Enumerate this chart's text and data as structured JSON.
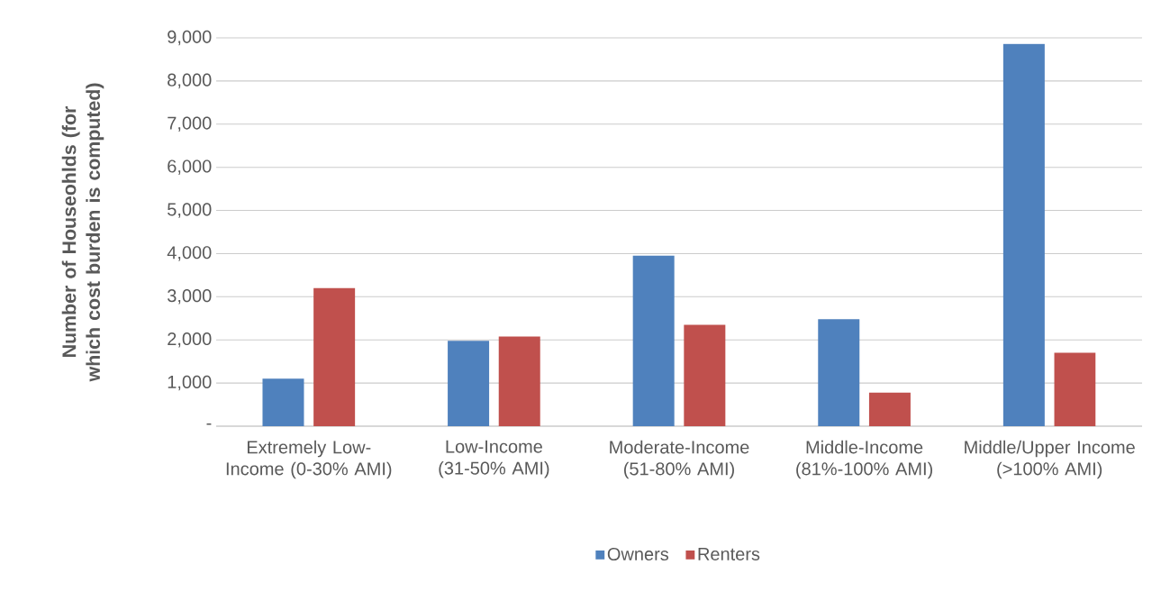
{
  "chart_data": {
    "type": "bar",
    "ylabel": "Number of Houseohlds (for which cost burden is computed)",
    "categories": [
      "Extremely Low-Income (0-30% AMI)",
      "Low-Income (31-50% AMI)",
      "Moderate-Income (51-80% AMI)",
      "Middle-Income (81%-100% AMI)",
      "Middle/Upper Income (>100% AMI)"
    ],
    "series": [
      {
        "name": "Owners",
        "color": "#4f81bd",
        "values": [
          1100,
          1980,
          3950,
          2480,
          8860
        ]
      },
      {
        "name": "Renters",
        "color": "#c0504d",
        "values": [
          3200,
          2080,
          2350,
          780,
          1700
        ]
      }
    ],
    "ylim": [
      0,
      9000
    ],
    "yticks": [
      {
        "value": 0,
        "label": "-"
      },
      {
        "value": 1000,
        "label": "1,000"
      },
      {
        "value": 2000,
        "label": "2,000"
      },
      {
        "value": 3000,
        "label": "3,000"
      },
      {
        "value": 4000,
        "label": "4,000"
      },
      {
        "value": 5000,
        "label": "5,000"
      },
      {
        "value": 6000,
        "label": "6,000"
      },
      {
        "value": 7000,
        "label": "7,000"
      },
      {
        "value": 8000,
        "label": "8,000"
      },
      {
        "value": 9000,
        "label": "9,000"
      }
    ],
    "grid": "y",
    "legend": "bottom"
  }
}
